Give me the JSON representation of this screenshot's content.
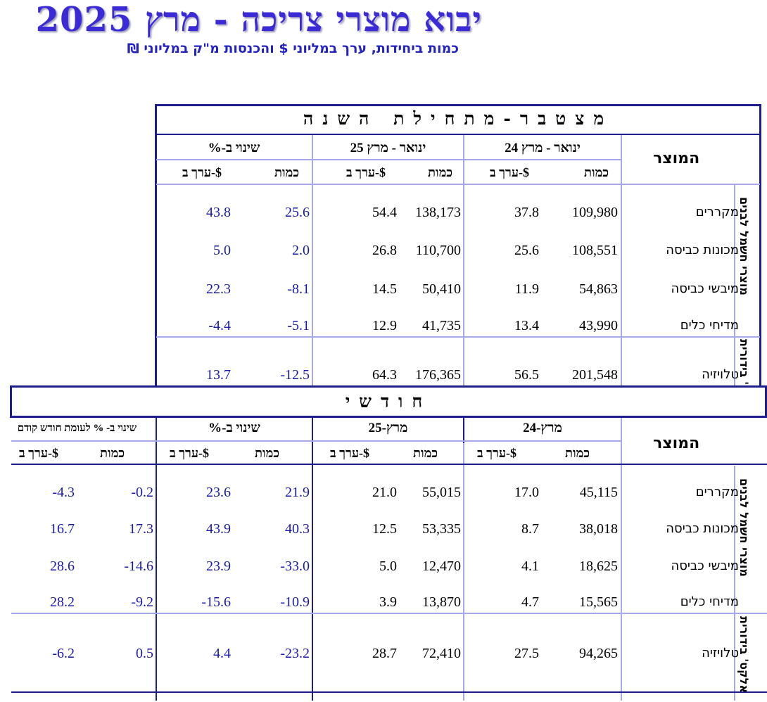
{
  "title": "יבוא מוצרי צריכה - מרץ 2025",
  "subtitle": "כמות ביחידות, ערך במליוני $ והכנסות מ\"ק במליוני ₪",
  "ytd": {
    "heading": "מצטבר-מתחילת השנה",
    "product_header": "המוצר",
    "groups": [
      "ינואר - מרץ 24",
      "ינואר - מרץ 25",
      "שינוי ב-%"
    ],
    "sub_qty": "כמות",
    "sub_val": "ערך ב-$",
    "categories": [
      "מוצרי חשמל לבנים",
      "אלקט' בידורית"
    ],
    "rows": [
      {
        "name": "מקררים",
        "q24": "109,980",
        "v24": "37.8",
        "q25": "138,173",
        "v25": "54.4",
        "cq": "25.6",
        "cv": "43.8"
      },
      {
        "name": "מכונות כביסה",
        "q24": "108,551",
        "v24": "25.6",
        "q25": "110,700",
        "v25": "26.8",
        "cq": "2.0",
        "cv": "5.0"
      },
      {
        "name": "מיבשי כביסה",
        "q24": "54,863",
        "v24": "11.9",
        "q25": "50,410",
        "v25": "14.5",
        "cq": "-8.1",
        "cv": "22.3"
      },
      {
        "name": "מדיחי כלים",
        "q24": "43,990",
        "v24": "13.4",
        "q25": "41,735",
        "v25": "12.9",
        "cq": "-5.1",
        "cv": "-4.4"
      },
      {
        "name": "טלויזיה",
        "q24": "201,548",
        "v24": "56.5",
        "q25": "176,365",
        "v25": "64.3",
        "cq": "-12.5",
        "cv": "13.7"
      }
    ]
  },
  "monthly": {
    "heading": "חודשי",
    "product_header": "המוצר",
    "groups": [
      "מרץ-24",
      "מרץ-25",
      "שינוי ב-%",
      "שינוי ב- % לעומת חודש קודם"
    ],
    "sub_qty": "כמות",
    "sub_val": "ערך ב-$",
    "categories": [
      "מוצרי חשמל לבנים",
      "אלקט' בידורית"
    ],
    "rows": [
      {
        "name": "מקררים",
        "q24": "45,115",
        "v24": "17.0",
        "q25": "55,015",
        "v25": "21.0",
        "cq": "21.9",
        "cv": "23.6",
        "pq": "-0.2",
        "pv": "-4.3"
      },
      {
        "name": "מכונות כביסה",
        "q24": "38,018",
        "v24": "8.7",
        "q25": "53,335",
        "v25": "12.5",
        "cq": "40.3",
        "cv": "43.9",
        "pq": "17.3",
        "pv": "16.7"
      },
      {
        "name": "מיבשי כביסה",
        "q24": "18,625",
        "v24": "4.1",
        "q25": "12,470",
        "v25": "5.0",
        "cq": "-33.0",
        "cv": "23.9",
        "pq": "-14.6",
        "pv": "28.6"
      },
      {
        "name": "מדיחי כלים",
        "q24": "15,565",
        "v24": "4.7",
        "q25": "13,870",
        "v25": "3.9",
        "cq": "-10.9",
        "cv": "-15.6",
        "pq": "-9.2",
        "pv": "28.2"
      },
      {
        "name": "טלויזיה",
        "q24": "94,265",
        "v24": "27.5",
        "q25": "72,410",
        "v25": "28.7",
        "cq": "-23.2",
        "cv": "4.4",
        "pq": "0.5",
        "pv": "-6.2"
      }
    ]
  }
}
